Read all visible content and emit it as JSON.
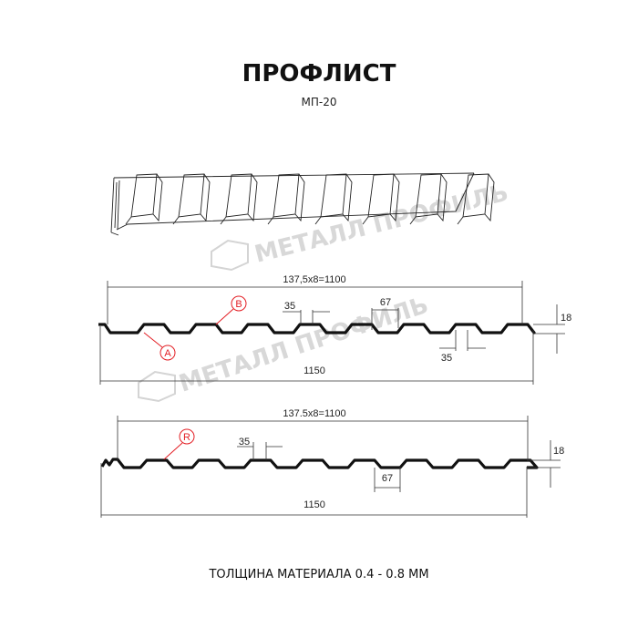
{
  "title": "ПРОФЛИСТ",
  "subtitle": "МП-20",
  "watermark": "МЕТАЛЛ ПРОФИЛЬ",
  "profile_top": {
    "pitch_label": "137,5x8=1100",
    "width_label": "1150",
    "rib_top_label": "35",
    "rib_bottom_label": "35",
    "rib_span_label": "67",
    "height_label": "18",
    "markers": [
      "B",
      "A"
    ]
  },
  "profile_bottom": {
    "pitch_label": "137.5x8=1100",
    "width_label": "1150",
    "rib_top_label": "35",
    "rib_span_label": "67",
    "height_label": "18",
    "markers": [
      "R"
    ]
  },
  "footer": "ТОЛЩИНА МАТЕРИАЛА 0.4 - 0.8 ММ",
  "colors": {
    "marker": "#e31e24",
    "profile": "#111111",
    "watermark": "#d4d4d4"
  }
}
